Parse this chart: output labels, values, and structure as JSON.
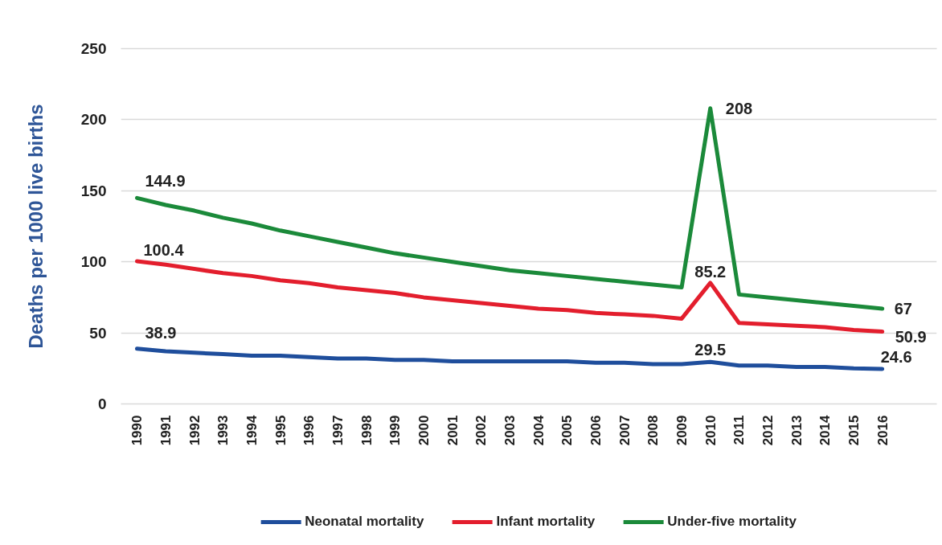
{
  "chart_data": {
    "type": "line",
    "ylabel": "Deaths per 1000 live births",
    "categories": [
      "1990",
      "1991",
      "1992",
      "1993",
      "1994",
      "1995",
      "1996",
      "1997",
      "1998",
      "1999",
      "2000",
      "2001",
      "2002",
      "2003",
      "2004",
      "2005",
      "2006",
      "2007",
      "2008",
      "2009",
      "2010",
      "2011",
      "2012",
      "2013",
      "2014",
      "2015",
      "2016"
    ],
    "ylim": [
      0,
      250
    ],
    "yticks": [
      0,
      50,
      100,
      150,
      200,
      250
    ],
    "grid": "y",
    "legend": "bottom",
    "line_style": "solid",
    "series": [
      {
        "name": "Neonatal mortality",
        "color": "#1f4e9c",
        "values": [
          38.9,
          37,
          36,
          35,
          34,
          34,
          33,
          32,
          32,
          31,
          31,
          30,
          30,
          30,
          30,
          30,
          29,
          29,
          28,
          28,
          29.5,
          27,
          27,
          26,
          26,
          25,
          24.6
        ],
        "value_labels": [
          "38.9",
          null,
          null,
          null,
          null,
          null,
          null,
          null,
          null,
          null,
          null,
          null,
          null,
          null,
          null,
          null,
          null,
          null,
          null,
          null,
          "29.5",
          null,
          null,
          null,
          null,
          null,
          "24.6"
        ]
      },
      {
        "name": "Infant mortality",
        "color": "#e31e2d",
        "values": [
          100.4,
          98,
          95,
          92,
          90,
          87,
          85,
          82,
          80,
          78,
          75,
          73,
          71,
          69,
          67,
          66,
          64,
          63,
          62,
          60,
          85.2,
          57,
          56,
          55,
          54,
          52,
          50.9
        ],
        "value_labels": [
          "100.4",
          null,
          null,
          null,
          null,
          null,
          null,
          null,
          null,
          null,
          null,
          null,
          null,
          null,
          null,
          null,
          null,
          null,
          null,
          null,
          "85.2",
          null,
          null,
          null,
          null,
          null,
          "50.9"
        ]
      },
      {
        "name": "Under-five mortality",
        "color": "#1b8a3a",
        "values": [
          144.9,
          140,
          136,
          131,
          127,
          122,
          118,
          114,
          110,
          106,
          103,
          100,
          97,
          94,
          92,
          90,
          88,
          86,
          84,
          82,
          208,
          77,
          75,
          73,
          71,
          69,
          67
        ],
        "value_labels": [
          "144.9",
          null,
          null,
          null,
          null,
          null,
          null,
          null,
          null,
          null,
          null,
          null,
          null,
          null,
          null,
          null,
          null,
          null,
          null,
          null,
          "208",
          null,
          null,
          null,
          null,
          null,
          "67"
        ]
      }
    ]
  }
}
